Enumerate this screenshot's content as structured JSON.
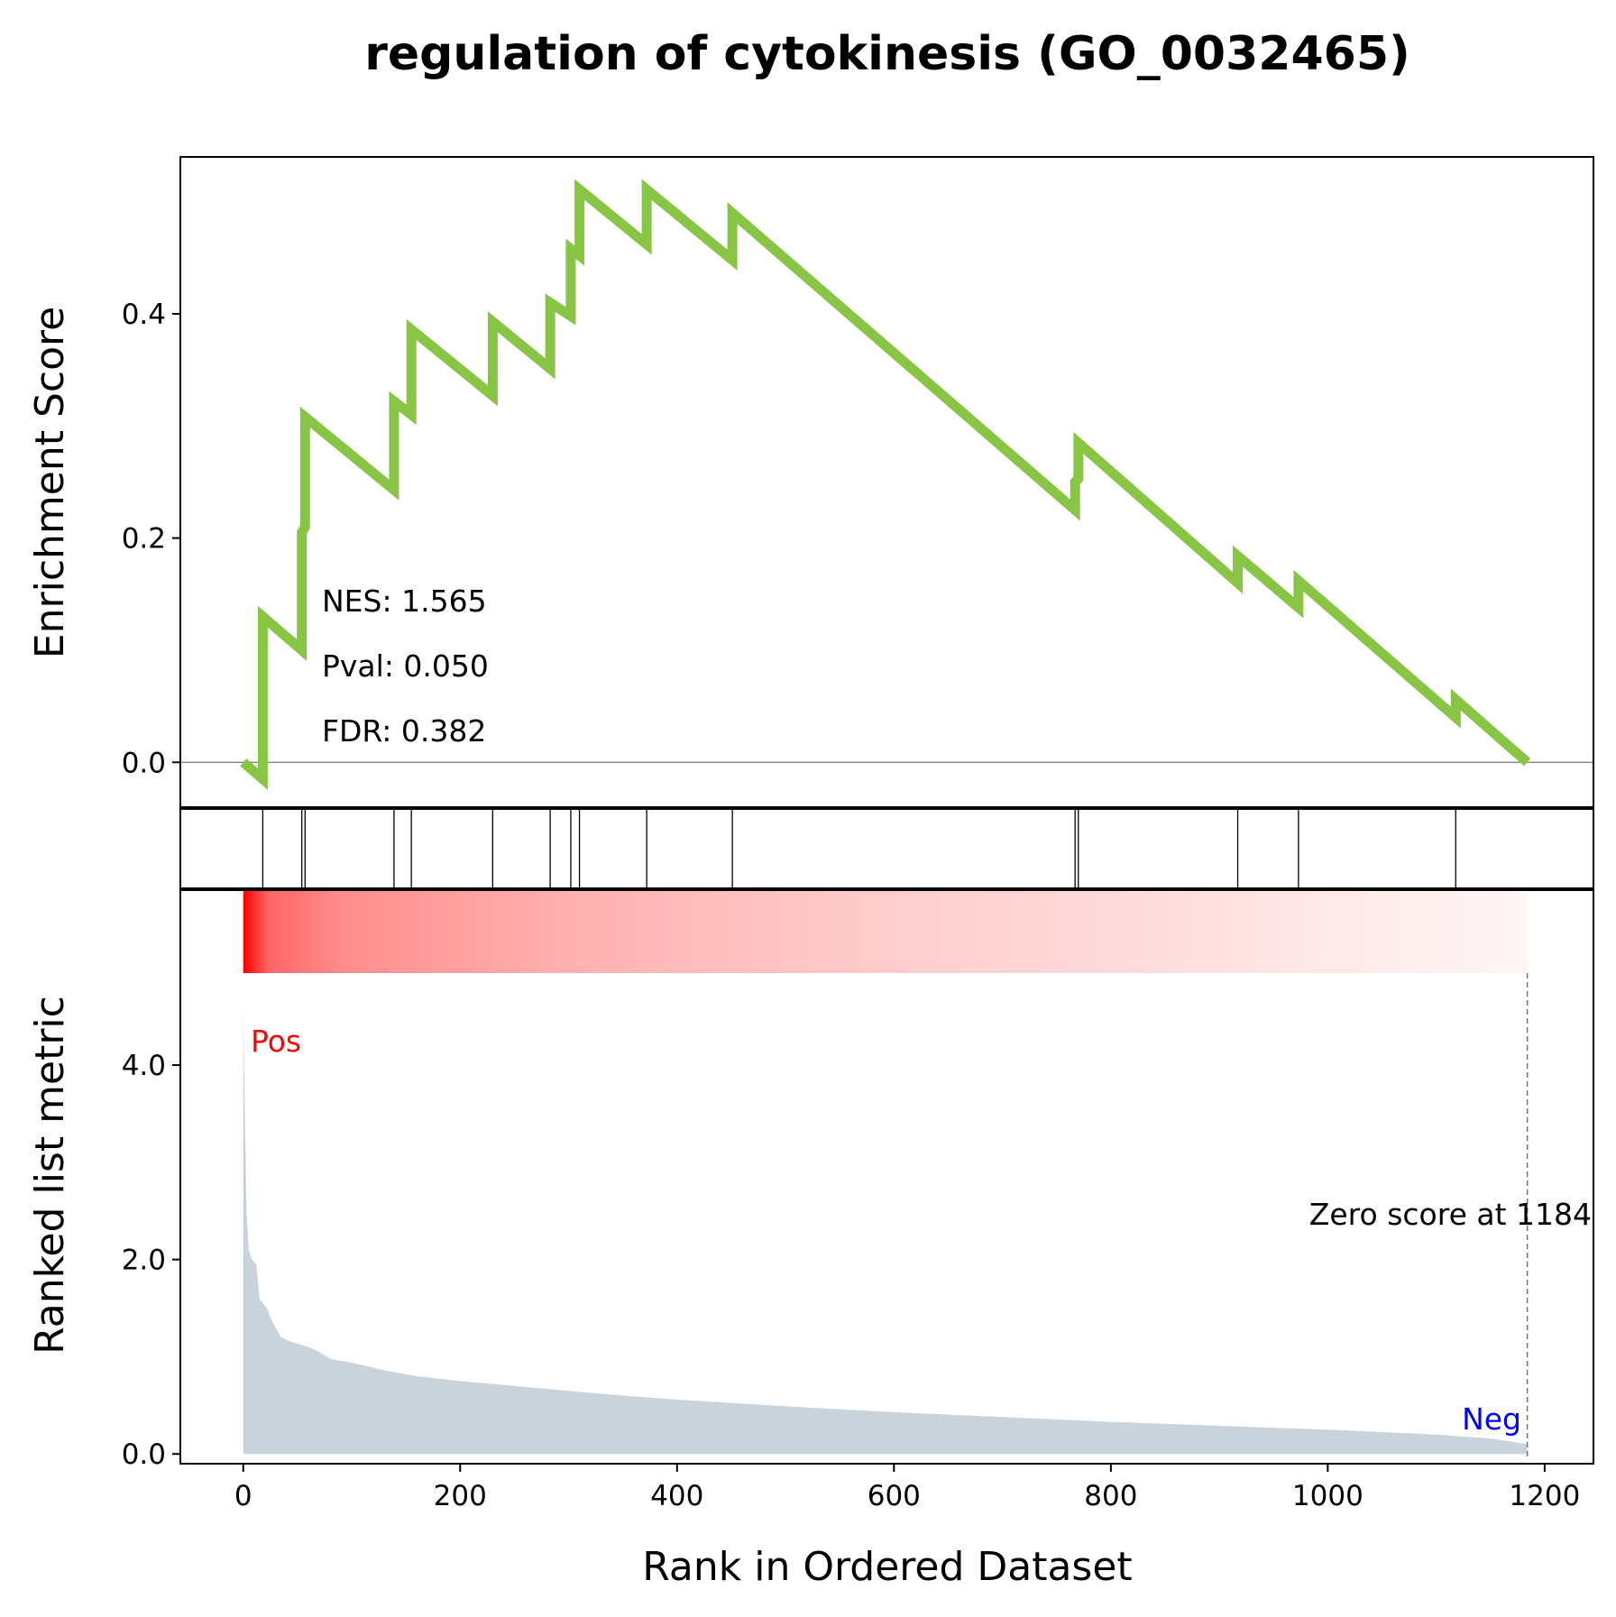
{
  "chart_data": {
    "type": "line",
    "title": "regulation of cytokinesis (GO_0032465)",
    "xlabel": "Rank in Ordered Dataset",
    "xlim": [
      -58,
      1245
    ],
    "xticks": [
      0,
      200,
      400,
      600,
      800,
      1000,
      1200
    ],
    "es_panel": {
      "ylabel": "Enrichment Score",
      "ylim": [
        -0.04,
        0.54
      ],
      "yticks": [
        0.0,
        0.2,
        0.4
      ],
      "ytick_labels": [
        "0.0",
        "0.2",
        "0.4"
      ],
      "series": [
        {
          "color": "#88c544",
          "x": [
            0,
            18,
            18,
            54,
            54,
            57,
            57,
            139,
            139,
            155,
            155,
            230,
            230,
            283,
            283,
            302,
            302,
            310,
            310,
            372,
            372,
            451,
            451,
            767,
            767,
            770,
            770,
            917,
            917,
            973,
            973,
            1118,
            1118,
            1184
          ],
          "y": [
            0.0,
            -0.015,
            0.13,
            0.1,
            0.205,
            0.21,
            0.308,
            0.243,
            0.322,
            0.31,
            0.386,
            0.327,
            0.393,
            0.351,
            0.41,
            0.398,
            0.458,
            0.452,
            0.511,
            0.462,
            0.511,
            0.448,
            0.49,
            0.225,
            0.25,
            0.253,
            0.285,
            0.16,
            0.184,
            0.138,
            0.162,
            0.04,
            0.056,
            0.0
          ]
        }
      ],
      "stats": {
        "nes": "NES: 1.565",
        "pval": "Pval: 0.050",
        "fdr": "FDR: 0.382"
      }
    },
    "hits": [
      18,
      54,
      57,
      139,
      155,
      230,
      283,
      302,
      310,
      372,
      451,
      767,
      770,
      917,
      973,
      1118
    ],
    "metric_panel": {
      "ylabel": "Ranked list metric",
      "ylim": [
        -0.1,
        5.8
      ],
      "yticks": [
        0.0,
        2.0,
        4.0
      ],
      "ytick_labels": [
        "0.0",
        "2.0",
        "4.0"
      ],
      "fill_color": "#c8d3dc",
      "x": [
        0,
        1,
        3,
        5,
        8,
        12,
        15,
        18,
        22,
        25,
        30,
        35,
        45,
        60,
        70,
        80,
        100,
        130,
        160,
        200,
        250,
        300,
        350,
        400,
        500,
        600,
        700,
        800,
        900,
        1000,
        1100,
        1150,
        1184
      ],
      "values": [
        4.6,
        3.8,
        2.5,
        2.1,
        2.0,
        1.95,
        1.6,
        1.55,
        1.5,
        1.4,
        1.3,
        1.2,
        1.15,
        1.1,
        1.05,
        0.98,
        0.94,
        0.86,
        0.8,
        0.75,
        0.7,
        0.65,
        0.6,
        0.56,
        0.49,
        0.43,
        0.38,
        0.33,
        0.29,
        0.25,
        0.2,
        0.16,
        0.1
      ],
      "zero_score_rank": 1184,
      "zero_score_label": "Zero score at 1184",
      "pos_label": "Pos",
      "neg_label": "Neg",
      "pos_color": "#ff0000",
      "neg_color": "#0000ff"
    }
  }
}
